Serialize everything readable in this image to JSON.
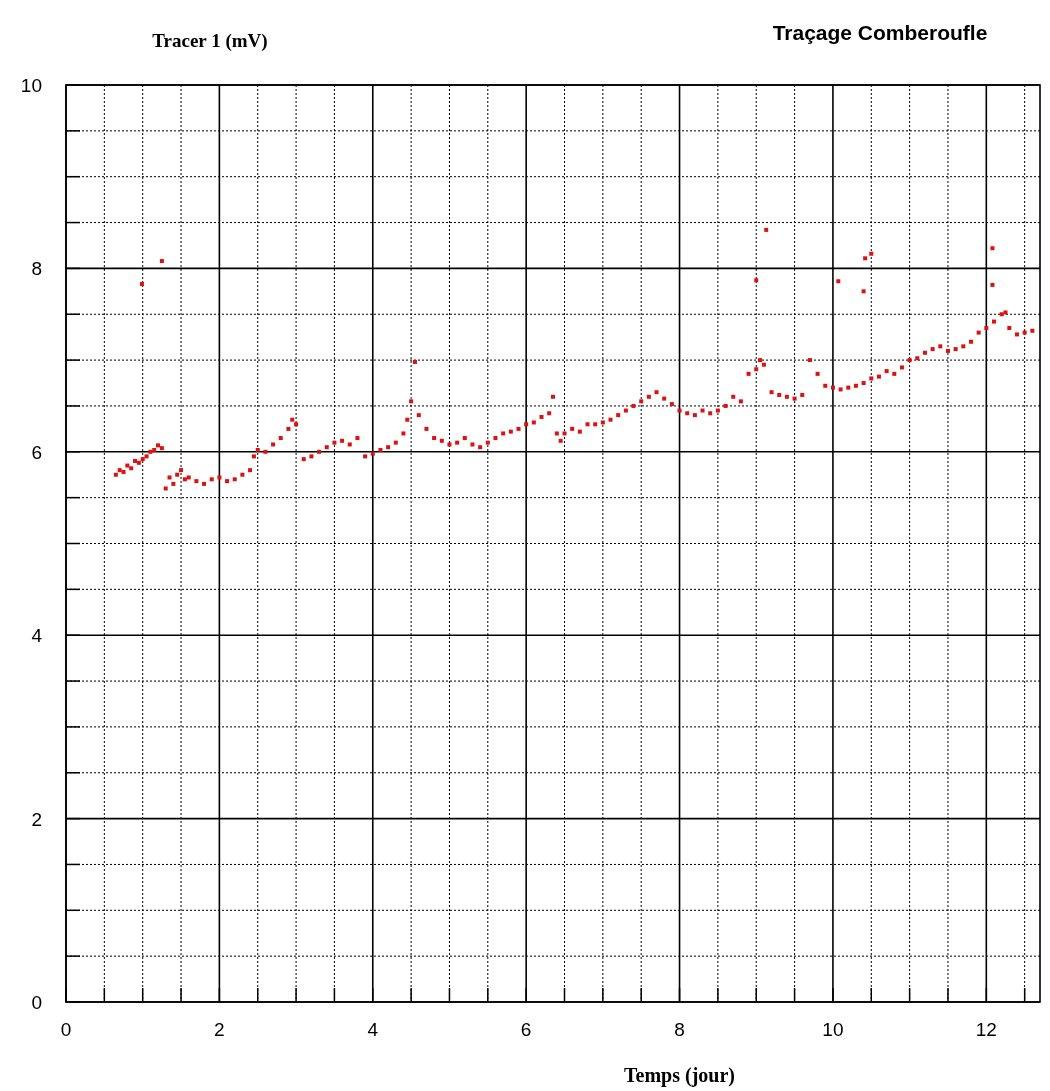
{
  "chart_data": {
    "type": "scatter",
    "title": "Traçage Comberoufle",
    "ylabel": "Tracer 1 (mV)",
    "xlabel": "Temps (jour)",
    "xlim": [
      0,
      12.7
    ],
    "ylim": [
      0,
      10
    ],
    "xticks": [
      0,
      {
        "value": 0.5,
        "label": null
      },
      {
        "value": 1,
        "label": null
      },
      {
        "value": 1.5,
        "label": null
      },
      2,
      {
        "value": 2.5,
        "label": null
      },
      {
        "value": 3,
        "label": null
      },
      {
        "value": 3.5,
        "label": null
      },
      4,
      {
        "value": 4.5,
        "label": null
      },
      {
        "value": 5,
        "label": null
      },
      {
        "value": 5.5,
        "label": null
      },
      6,
      {
        "value": 6.5,
        "label": null
      },
      {
        "value": 7,
        "label": null
      },
      {
        "value": 7.5,
        "label": null
      },
      8,
      {
        "value": 8.5,
        "label": null
      },
      {
        "value": 9,
        "label": null
      },
      {
        "value": 9.5,
        "label": null
      },
      10,
      {
        "value": 10.5,
        "label": null
      },
      {
        "value": 11,
        "label": null
      },
      {
        "value": 11.5,
        "label": null
      },
      12,
      {
        "value": 12.5,
        "label": null
      }
    ],
    "yticks": [
      0,
      {
        "value": 0.5,
        "label": null
      },
      {
        "value": 1,
        "label": null
      },
      {
        "value": 1.5,
        "label": null
      },
      2,
      {
        "value": 2.5,
        "label": null
      },
      {
        "value": 3,
        "label": null
      },
      {
        "value": 3.5,
        "label": null
      },
      4,
      {
        "value": 4.5,
        "label": null
      },
      {
        "value": 5,
        "label": null
      },
      {
        "value": 5.5,
        "label": null
      },
      6,
      {
        "value": 6.5,
        "label": null
      },
      {
        "value": 7,
        "label": null
      },
      {
        "value": 7.5,
        "label": null
      },
      8,
      {
        "value": 8.5,
        "label": null
      },
      {
        "value": 9,
        "label": null
      },
      {
        "value": 9.5,
        "label": null
      },
      10
    ],
    "grid": true,
    "marker": "square",
    "series": [
      {
        "color": "#dd1111",
        "x": [
          0.65,
          0.7,
          0.75,
          0.8,
          0.85,
          0.9,
          0.95,
          1.0,
          1.05,
          1.1,
          1.15,
          1.2,
          1.25,
          1.3,
          1.35,
          1.4,
          1.45,
          1.5,
          1.55,
          1.6,
          1.7,
          1.8,
          1.9,
          2.0,
          2.1,
          2.2,
          2.3,
          2.4,
          2.45,
          2.5,
          2.6,
          2.7,
          2.8,
          2.9,
          2.95,
          3.0,
          3.1,
          3.2,
          3.3,
          3.4,
          3.5,
          3.6,
          3.7,
          3.8,
          3.9,
          4.0,
          4.1,
          4.2,
          4.3,
          4.4,
          4.45,
          4.5,
          4.55,
          4.6,
          4.7,
          4.8,
          4.9,
          5.0,
          5.1,
          5.2,
          5.3,
          5.4,
          5.5,
          5.6,
          5.7,
          5.8,
          5.9,
          6.0,
          6.1,
          6.2,
          6.3,
          6.35,
          6.4,
          6.45,
          6.5,
          6.6,
          6.7,
          6.8,
          6.9,
          7.0,
          7.1,
          7.2,
          7.3,
          7.4,
          7.5,
          7.6,
          7.7,
          7.8,
          7.9,
          8.0,
          8.1,
          8.2,
          8.3,
          8.4,
          8.5,
          8.6,
          8.7,
          8.8,
          8.9,
          9.0,
          9.05,
          9.1,
          9.2,
          9.3,
          9.4,
          9.5,
          9.6,
          9.7,
          9.8,
          9.9,
          10.0,
          10.1,
          10.2,
          10.3,
          10.4,
          10.5,
          10.6,
          10.7,
          10.8,
          10.9,
          11.0,
          11.1,
          11.2,
          11.3,
          11.4,
          11.5,
          11.6,
          11.7,
          11.8,
          11.9,
          12.0,
          12.1,
          12.2,
          12.25,
          12.3,
          12.4,
          12.5,
          12.6,
          0.99,
          1.25,
          9.0,
          9.13,
          10.07,
          10.4,
          10.42,
          10.5,
          12.08,
          12.08
        ],
        "values": [
          5.75,
          5.8,
          5.78,
          5.85,
          5.82,
          5.9,
          5.88,
          5.92,
          5.95,
          6.0,
          6.02,
          6.07,
          6.04,
          5.6,
          5.72,
          5.65,
          5.75,
          5.8,
          5.7,
          5.72,
          5.68,
          5.65,
          5.7,
          5.72,
          5.68,
          5.7,
          5.75,
          5.8,
          5.95,
          6.02,
          6.0,
          6.08,
          6.15,
          6.25,
          6.35,
          6.3,
          5.92,
          5.95,
          6.0,
          6.05,
          6.1,
          6.12,
          6.08,
          6.15,
          5.95,
          5.98,
          6.02,
          6.05,
          6.1,
          6.2,
          6.35,
          6.55,
          6.98,
          6.4,
          6.25,
          6.15,
          6.12,
          6.08,
          6.1,
          6.15,
          6.08,
          6.05,
          6.1,
          6.15,
          6.2,
          6.22,
          6.25,
          6.3,
          6.32,
          6.38,
          6.42,
          6.6,
          6.2,
          6.12,
          6.2,
          6.25,
          6.22,
          6.3,
          6.3,
          6.32,
          6.35,
          6.4,
          6.45,
          6.5,
          6.55,
          6.6,
          6.65,
          6.58,
          6.52,
          6.45,
          6.42,
          6.4,
          6.45,
          6.42,
          6.45,
          6.5,
          6.6,
          6.55,
          6.85,
          6.9,
          7.0,
          6.95,
          6.65,
          6.62,
          6.6,
          6.58,
          6.62,
          7.0,
          6.85,
          6.72,
          6.7,
          6.68,
          6.7,
          6.72,
          6.75,
          6.8,
          6.82,
          6.88,
          6.85,
          6.92,
          7.0,
          7.02,
          7.08,
          7.12,
          7.15,
          7.1,
          7.12,
          7.15,
          7.2,
          7.3,
          7.35,
          7.42,
          7.5,
          7.52,
          7.35,
          7.28,
          7.3,
          7.32,
          7.83,
          8.08,
          7.87,
          8.42,
          7.86,
          7.75,
          8.11,
          8.16,
          8.22,
          7.82
        ]
      }
    ]
  }
}
